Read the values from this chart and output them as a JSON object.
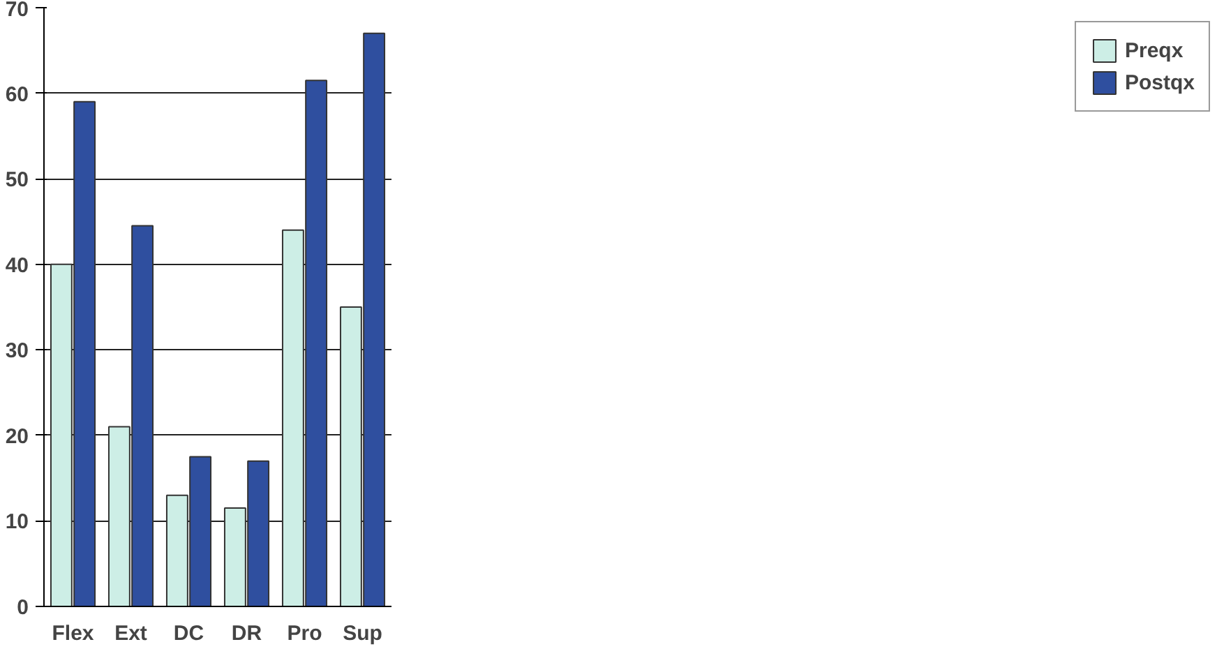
{
  "chart_data": {
    "type": "bar",
    "categories": [
      "Flex",
      "Ext",
      "DC",
      "DR",
      "Pro",
      "Sup"
    ],
    "series": [
      {
        "name": "Preqx",
        "color": "#cdeee6",
        "values": [
          40,
          21,
          13,
          11.5,
          44,
          35
        ]
      },
      {
        "name": "Postqx",
        "color": "#2f4f9f",
        "values": [
          59,
          44.5,
          17.5,
          17,
          61.5,
          67
        ]
      }
    ],
    "ylim": [
      0,
      70
    ],
    "yticks": [
      0,
      10,
      20,
      30,
      40,
      50,
      60,
      70
    ],
    "grid": "y",
    "legend": "right"
  }
}
